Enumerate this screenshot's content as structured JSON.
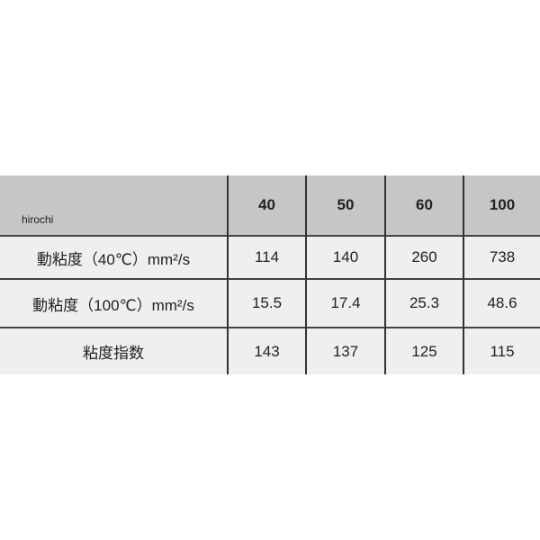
{
  "table": {
    "corner_label": "hirochi",
    "columns": [
      "40",
      "50",
      "60",
      "100"
    ],
    "rows": [
      {
        "label": "動粘度（40℃）mm²/s",
        "values": [
          "114",
          "140",
          "260",
          "738"
        ]
      },
      {
        "label": "動粘度（100℃）mm²/s",
        "values": [
          "15.5",
          "17.4",
          "25.3",
          "48.6"
        ]
      },
      {
        "label": "粘度指数",
        "values": [
          "143",
          "137",
          "125",
          "115"
        ]
      }
    ]
  }
}
